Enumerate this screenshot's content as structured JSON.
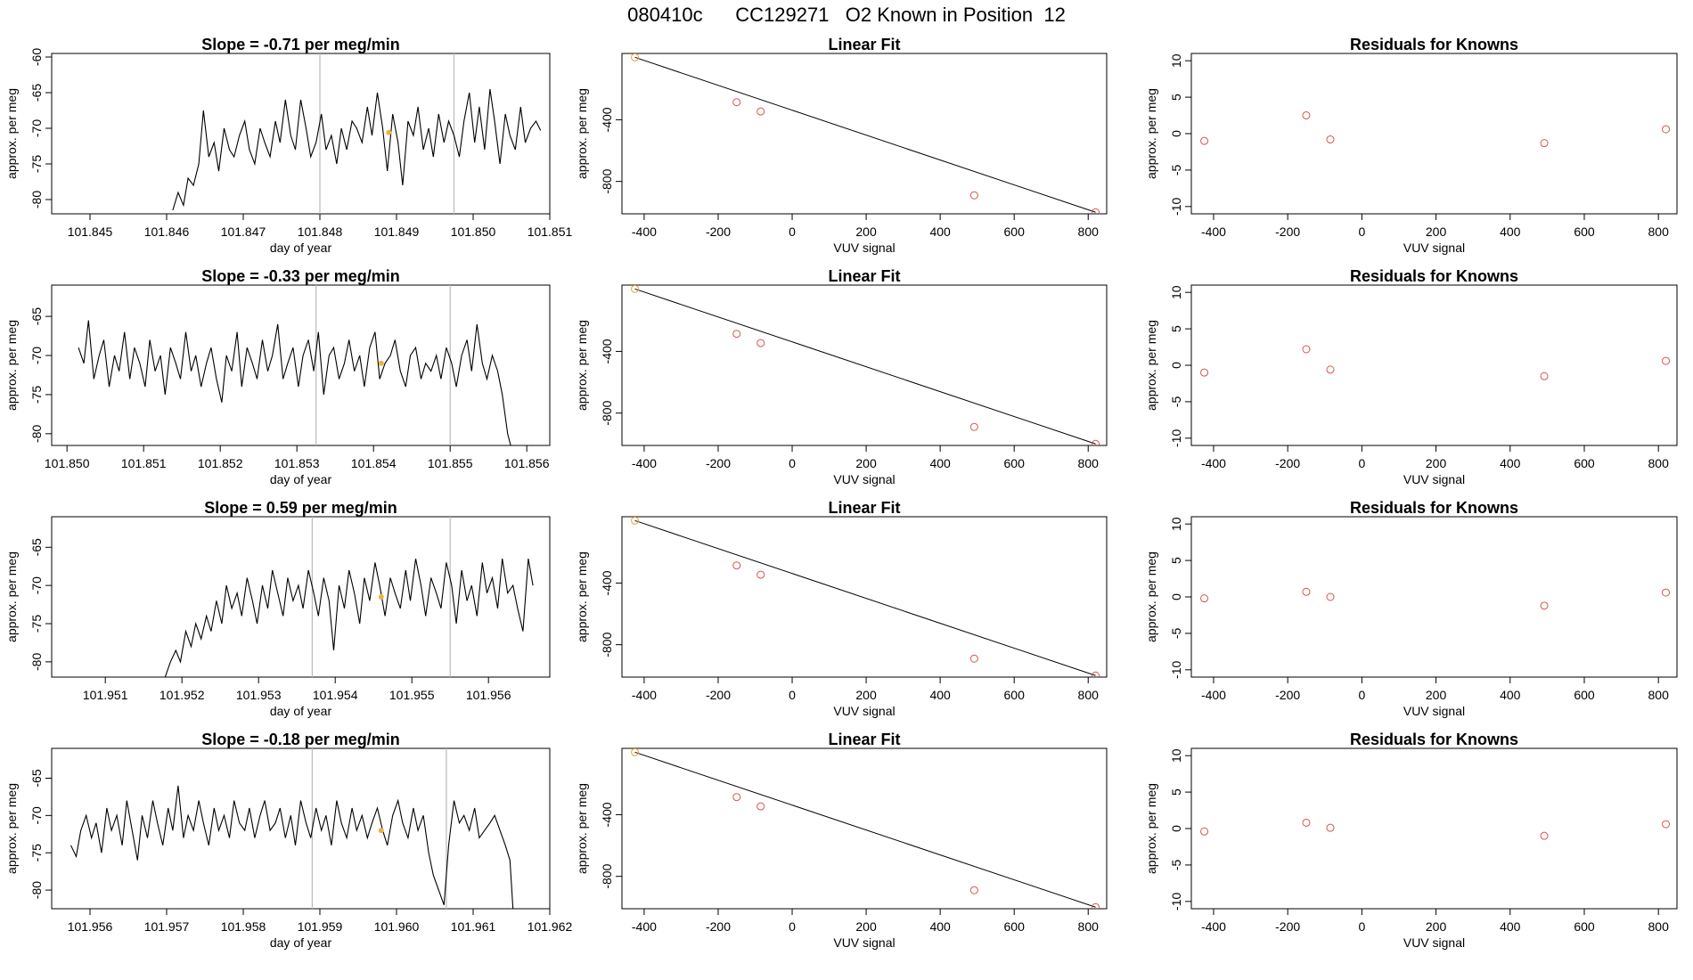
{
  "header": {
    "title": "080410c      CC129271   O2 Known in Position  12"
  },
  "chart_data": [
    {
      "panel": "time-series",
      "row": 1,
      "type": "line",
      "title": "Slope =  -0.71  per meg/min",
      "xlabel": "day of year",
      "ylabel": "approx. per meg",
      "xlim": [
        101.8445,
        101.851
      ],
      "ylim": [
        -82,
        -59.5
      ],
      "grid": false,
      "xticks": [
        "101.845",
        "101.846",
        "101.847",
        "101.848",
        "101.849",
        "101.850",
        "101.851"
      ],
      "yticks": [
        "-60",
        "-65",
        "-70",
        "-75",
        "-80"
      ],
      "vlines": [
        101.848,
        101.84975
      ],
      "marker": {
        "x": 101.8489,
        "y": -70.6
      },
      "x": [
        101.84608,
        101.84615,
        101.84622,
        101.84628,
        101.84635,
        101.84642,
        101.84648,
        101.84655,
        101.84662,
        101.84668,
        101.84675,
        101.84682,
        101.84688,
        101.84695,
        101.84702,
        101.84708,
        101.84715,
        101.84722,
        101.84728,
        101.84735,
        101.84742,
        101.84748,
        101.84755,
        101.84762,
        101.84768,
        101.84775,
        101.84782,
        101.84788,
        101.84795,
        101.84802,
        101.84808,
        101.84815,
        101.84822,
        101.84828,
        101.84835,
        101.84842,
        101.84848,
        101.84855,
        101.84862,
        101.84868,
        101.84875,
        101.84882,
        101.84888,
        101.84895,
        101.84902,
        101.84908,
        101.84915,
        101.84922,
        101.84928,
        101.84935,
        101.84942,
        101.84948,
        101.84955,
        101.84962,
        101.84968,
        101.84975,
        101.84982,
        101.84988,
        101.84995,
        101.85002,
        101.85008,
        101.85015,
        101.85022,
        101.85028,
        101.85035,
        101.85042,
        101.85048,
        101.85055,
        101.85062,
        101.85068,
        101.85075,
        101.85082,
        101.85088
      ],
      "y": [
        -81.5,
        -79,
        -80.8,
        -77,
        -78,
        -75,
        -67.5,
        -74,
        -72,
        -76,
        -70,
        -73,
        -74,
        -71,
        -69,
        -73,
        -75,
        -70,
        -72,
        -74,
        -69,
        -72,
        -66,
        -71,
        -73,
        -66,
        -70,
        -74,
        -72,
        -68,
        -73,
        -71,
        -75,
        -70,
        -73,
        -69,
        -70,
        -72,
        -67,
        -71,
        -65,
        -70,
        -76,
        -68,
        -72,
        -78,
        -69,
        -71,
        -67,
        -73,
        -70,
        -74,
        -68,
        -72,
        -69,
        -71,
        -74,
        -69,
        -65,
        -72,
        -67,
        -73,
        -64.5,
        -69,
        -75,
        -68,
        -71,
        -73,
        -67,
        -72,
        -70,
        -69,
        -70.3
      ]
    },
    {
      "panel": "linear-fit",
      "row": 1,
      "type": "scatter",
      "title": "Linear Fit",
      "xlabel": "VUV signal",
      "ylabel": "approx. per meg",
      "xlim": [
        -460,
        850
      ],
      "ylim": [
        -1010,
        30
      ],
      "xticks": [
        "-400",
        "-200",
        "0",
        "200",
        "400",
        "600",
        "800"
      ],
      "yticks": [
        "-400",
        "-800"
      ],
      "x": [
        -425,
        -150,
        -85,
        492,
        820
      ],
      "y": [
        5,
        -286,
        -346,
        -890,
        -1000
      ],
      "fit_line": {
        "x": [
          -425,
          820
        ],
        "y": [
          5,
          -1000
        ]
      }
    },
    {
      "panel": "residuals",
      "row": 1,
      "type": "scatter",
      "title": "Residuals for Knowns",
      "xlabel": "VUV signal",
      "ylabel": "approx. per meg",
      "xlim": [
        -460,
        850
      ],
      "ylim": [
        -11,
        11
      ],
      "xticks": [
        "-400",
        "-200",
        "0",
        "200",
        "400",
        "600",
        "800"
      ],
      "yticks": [
        "10",
        "5",
        "0",
        "-5",
        "-10"
      ],
      "x": [
        -425,
        -150,
        -85,
        492,
        820
      ],
      "y": [
        -1.0,
        2.5,
        -0.8,
        -1.3,
        0.6
      ]
    },
    {
      "panel": "time-series",
      "row": 2,
      "type": "line",
      "title": "Slope =  -0.33  per meg/min",
      "xlabel": "day of year",
      "ylabel": "approx. per meg",
      "xlim": [
        101.8498,
        101.8563
      ],
      "ylim": [
        -81.5,
        -61
      ],
      "grid": false,
      "xticks": [
        "101.850",
        "101.851",
        "101.852",
        "101.853",
        "101.854",
        "101.855",
        "101.856"
      ],
      "yticks": [
        "-65",
        "-70",
        "-75",
        "-80"
      ],
      "vlines": [
        101.85325,
        101.855
      ],
      "marker": {
        "x": 101.8541,
        "y": -71
      },
      "x": [
        101.85015,
        101.85022,
        101.85028,
        101.85035,
        101.85042,
        101.85048,
        101.85055,
        101.85062,
        101.85068,
        101.85075,
        101.85082,
        101.85088,
        101.85095,
        101.85102,
        101.85108,
        101.85115,
        101.85122,
        101.85128,
        101.85135,
        101.85142,
        101.85148,
        101.85155,
        101.85162,
        101.85168,
        101.85175,
        101.85182,
        101.85188,
        101.85195,
        101.85202,
        101.85208,
        101.85215,
        101.85222,
        101.85228,
        101.85235,
        101.85242,
        101.85248,
        101.85255,
        101.85262,
        101.85268,
        101.85275,
        101.85282,
        101.85288,
        101.85295,
        101.85302,
        101.85308,
        101.85315,
        101.85322,
        101.85328,
        101.85335,
        101.85342,
        101.85348,
        101.85355,
        101.85362,
        101.85368,
        101.85375,
        101.85382,
        101.85388,
        101.85395,
        101.85402,
        101.85408,
        101.85415,
        101.85422,
        101.85428,
        101.85435,
        101.85442,
        101.85448,
        101.85455,
        101.85462,
        101.85468,
        101.85475,
        101.85482,
        101.85488,
        101.85495,
        101.85502,
        101.85508,
        101.85515,
        101.85522,
        101.85528,
        101.85535,
        101.85542,
        101.85548,
        101.85555,
        101.85562,
        101.85568,
        101.85575,
        101.85579
      ],
      "y": [
        -69,
        -71,
        -65.5,
        -73,
        -70,
        -68,
        -74,
        -70,
        -72,
        -67,
        -73,
        -69,
        -71,
        -74,
        -68,
        -72,
        -70,
        -75,
        -69,
        -71,
        -73,
        -67,
        -72,
        -70,
        -74,
        -71,
        -69,
        -73,
        -76,
        -70,
        -72,
        -67,
        -74,
        -69,
        -71,
        -73,
        -68,
        -72,
        -70,
        -66,
        -73,
        -71,
        -69,
        -74,
        -70,
        -68,
        -72,
        -67,
        -75,
        -70,
        -69,
        -73,
        -71,
        -68,
        -72,
        -70,
        -74,
        -69,
        -67,
        -73,
        -71,
        -70,
        -68,
        -72,
        -74,
        -70,
        -69,
        -73,
        -71,
        -72,
        -70,
        -73,
        -69,
        -71,
        -74,
        -70,
        -68,
        -72,
        -66,
        -71,
        -73,
        -70,
        -72,
        -75,
        -80,
        -81.5
      ]
    },
    {
      "panel": "linear-fit",
      "row": 2,
      "type": "scatter",
      "title": "Linear Fit",
      "xlabel": "VUV signal",
      "ylabel": "approx. per meg",
      "xlim": [
        -460,
        850
      ],
      "ylim": [
        -1010,
        30
      ],
      "xticks": [
        "-400",
        "-200",
        "0",
        "200",
        "400",
        "600",
        "800"
      ],
      "yticks": [
        "-400",
        "-800"
      ],
      "x": [
        -425,
        -150,
        -85,
        492,
        820
      ],
      "y": [
        5,
        -286,
        -346,
        -890,
        -1000
      ],
      "fit_line": {
        "x": [
          -425,
          820
        ],
        "y": [
          5,
          -1000
        ]
      }
    },
    {
      "panel": "residuals",
      "row": 2,
      "type": "scatter",
      "title": "Residuals for Knowns",
      "xlabel": "VUV signal",
      "ylabel": "approx. per meg",
      "xlim": [
        -460,
        850
      ],
      "ylim": [
        -11,
        11
      ],
      "xticks": [
        "-400",
        "-200",
        "0",
        "200",
        "400",
        "600",
        "800"
      ],
      "yticks": [
        "10",
        "5",
        "0",
        "-5",
        "-10"
      ],
      "x": [
        -425,
        -150,
        -85,
        492,
        820
      ],
      "y": [
        -1.0,
        2.2,
        -0.6,
        -1.5,
        0.6
      ]
    },
    {
      "panel": "time-series",
      "row": 3,
      "type": "line",
      "title": "Slope =  0.59  per meg/min",
      "xlabel": "day of year",
      "ylabel": "approx. per meg",
      "xlim": [
        101.9503,
        101.9568
      ],
      "ylim": [
        -82,
        -61
      ],
      "grid": false,
      "xticks": [
        "101.951",
        "101.952",
        "101.953",
        "101.954",
        "101.955",
        "101.956"
      ],
      "yticks": [
        "-65",
        "-70",
        "-75",
        "-80"
      ],
      "vlines": [
        101.9537,
        101.9555
      ],
      "marker": {
        "x": 101.9546,
        "y": -71.5
      },
      "x": [
        101.95178,
        101.95185,
        101.95192,
        101.95198,
        101.95205,
        101.95212,
        101.95218,
        101.95225,
        101.95232,
        101.95238,
        101.95245,
        101.95252,
        101.95258,
        101.95265,
        101.95272,
        101.95278,
        101.95285,
        101.95292,
        101.95298,
        101.95305,
        101.95312,
        101.95318,
        101.95325,
        101.95332,
        101.95338,
        101.95345,
        101.95352,
        101.95358,
        101.95365,
        101.95372,
        101.95378,
        101.95385,
        101.95392,
        101.95398,
        101.95405,
        101.95412,
        101.95418,
        101.95425,
        101.95432,
        101.95438,
        101.95445,
        101.95452,
        101.95458,
        101.95465,
        101.95472,
        101.95478,
        101.95485,
        101.95492,
        101.95498,
        101.95505,
        101.95512,
        101.95518,
        101.95525,
        101.95532,
        101.95538,
        101.95545,
        101.95552,
        101.95558,
        101.95565,
        101.95572,
        101.95578,
        101.95585,
        101.95592,
        101.95598,
        101.95605,
        101.95612,
        101.95618,
        101.95625,
        101.95632,
        101.95638,
        101.95645,
        101.95652,
        101.95658
      ],
      "y": [
        -82,
        -80,
        -78.5,
        -80,
        -76,
        -78,
        -75,
        -77,
        -74,
        -76,
        -72,
        -75,
        -70,
        -73,
        -71,
        -74,
        -69,
        -72,
        -75,
        -70,
        -73,
        -68,
        -71,
        -74,
        -69,
        -72,
        -70,
        -73,
        -68,
        -71,
        -74,
        -69,
        -72,
        -78.5,
        -70,
        -73,
        -68,
        -71,
        -75,
        -69,
        -72,
        -67,
        -70,
        -74,
        -69,
        -71,
        -73,
        -68,
        -72,
        -66.5,
        -70,
        -74,
        -69,
        -71,
        -73,
        -67,
        -70,
        -75,
        -68,
        -72,
        -70,
        -74,
        -67,
        -71,
        -69,
        -73,
        -66.5,
        -71,
        -70,
        -73,
        -76,
        -66.5,
        -70
      ]
    },
    {
      "panel": "linear-fit",
      "row": 3,
      "type": "scatter",
      "title": "Linear Fit",
      "xlabel": "VUV signal",
      "ylabel": "approx. per meg",
      "xlim": [
        -460,
        850
      ],
      "ylim": [
        -1010,
        30
      ],
      "xticks": [
        "-400",
        "-200",
        "0",
        "200",
        "400",
        "600",
        "800"
      ],
      "yticks": [
        "-400",
        "-800"
      ],
      "x": [
        -425,
        -150,
        -85,
        492,
        820
      ],
      "y": [
        5,
        -286,
        -346,
        -890,
        -1000
      ],
      "fit_line": {
        "x": [
          -425,
          820
        ],
        "y": [
          5,
          -1000
        ]
      }
    },
    {
      "panel": "residuals",
      "row": 3,
      "type": "scatter",
      "title": "Residuals for Knowns",
      "xlabel": "VUV signal",
      "ylabel": "approx. per meg",
      "xlim": [
        -460,
        850
      ],
      "ylim": [
        -11,
        11
      ],
      "xticks": [
        "-400",
        "-200",
        "0",
        "200",
        "400",
        "600",
        "800"
      ],
      "yticks": [
        "10",
        "5",
        "0",
        "-5",
        "-10"
      ],
      "x": [
        -425,
        -150,
        -85,
        492,
        820
      ],
      "y": [
        -0.2,
        0.7,
        0.0,
        -1.2,
        0.6
      ]
    },
    {
      "panel": "time-series",
      "row": 4,
      "type": "line",
      "title": "Slope =  -0.18  per meg/min",
      "xlabel": "day of year",
      "ylabel": "approx. per meg",
      "xlim": [
        101.9555,
        101.962
      ],
      "ylim": [
        -82.5,
        -61
      ],
      "grid": false,
      "xticks": [
        "101.956",
        "101.957",
        "101.958",
        "101.959",
        "101.960",
        "101.961",
        "101.962"
      ],
      "yticks": [
        "-65",
        "-70",
        "-75",
        "-80"
      ],
      "vlines": [
        101.9589,
        101.96065
      ],
      "marker": {
        "x": 101.9598,
        "y": -72
      },
      "x": [
        101.95575,
        101.95582,
        101.95588,
        101.95595,
        101.95602,
        101.95608,
        101.95615,
        101.95622,
        101.95628,
        101.95635,
        101.95642,
        101.95648,
        101.95655,
        101.95662,
        101.95668,
        101.95675,
        101.95682,
        101.95688,
        101.95695,
        101.95702,
        101.95708,
        101.95715,
        101.95722,
        101.95728,
        101.95735,
        101.95742,
        101.95748,
        101.95755,
        101.95762,
        101.95768,
        101.95775,
        101.95782,
        101.95788,
        101.95795,
        101.95802,
        101.95808,
        101.95815,
        101.95822,
        101.95828,
        101.95835,
        101.95842,
        101.95848,
        101.95855,
        101.95862,
        101.95868,
        101.95875,
        101.95882,
        101.95888,
        101.95895,
        101.95902,
        101.95908,
        101.95915,
        101.95922,
        101.95928,
        101.95935,
        101.95942,
        101.95948,
        101.95955,
        101.95962,
        101.95968,
        101.95975,
        101.95982,
        101.95988,
        101.95995,
        101.96002,
        101.96008,
        101.96015,
        101.96022,
        101.96028,
        101.96035,
        101.96042,
        101.96048,
        101.96055,
        101.96062,
        101.96068,
        101.96075,
        101.96082,
        101.96088,
        101.96095,
        101.96102,
        101.96108,
        101.96115,
        101.96122,
        101.96128,
        101.96135,
        101.96142,
        101.96148,
        101.96152
      ],
      "y": [
        -74,
        -75.5,
        -72,
        -70,
        -73,
        -71,
        -75,
        -69,
        -72,
        -70,
        -74,
        -68,
        -72,
        -76,
        -70,
        -73,
        -68,
        -71,
        -74,
        -69,
        -72,
        -66,
        -73,
        -70,
        -72,
        -68,
        -71,
        -74,
        -69,
        -72,
        -70,
        -73,
        -68,
        -71,
        -72,
        -69,
        -73,
        -70,
        -68,
        -72,
        -71,
        -69,
        -73,
        -70,
        -74,
        -68,
        -71,
        -73,
        -69,
        -72,
        -70,
        -74,
        -68,
        -71,
        -73,
        -69,
        -72,
        -70,
        -73,
        -71,
        -69,
        -72,
        -74,
        -70,
        -68,
        -71,
        -73,
        -69,
        -72,
        -70,
        -75,
        -78,
        -80,
        -82,
        -74,
        -68,
        -71,
        -70,
        -72,
        -69,
        -73,
        -72,
        -71,
        -70,
        -72,
        -74,
        -76,
        -82.5
      ]
    },
    {
      "panel": "linear-fit",
      "row": 4,
      "type": "scatter",
      "title": "Linear Fit",
      "xlabel": "VUV signal",
      "ylabel": "approx. per meg",
      "xlim": [
        -460,
        850
      ],
      "ylim": [
        -1010,
        30
      ],
      "xticks": [
        "-400",
        "-200",
        "0",
        "200",
        "400",
        "600",
        "800"
      ],
      "yticks": [
        "-400",
        "-800"
      ],
      "x": [
        -425,
        -150,
        -85,
        492,
        820
      ],
      "y": [
        5,
        -286,
        -346,
        -890,
        -1000
      ],
      "fit_line": {
        "x": [
          -425,
          820
        ],
        "y": [
          5,
          -1000
        ]
      }
    },
    {
      "panel": "residuals",
      "row": 4,
      "type": "scatter",
      "title": "Residuals for Knowns",
      "xlabel": "VUV signal",
      "ylabel": "approx. per meg",
      "xlim": [
        -460,
        850
      ],
      "ylim": [
        -11,
        11
      ],
      "xticks": [
        "-400",
        "-200",
        "0",
        "200",
        "400",
        "600",
        "800"
      ],
      "yticks": [
        "10",
        "5",
        "0",
        "-5",
        "-10"
      ],
      "x": [
        -425,
        -150,
        -85,
        492,
        820
      ],
      "y": [
        -0.4,
        0.8,
        0.1,
        -1.0,
        0.6
      ]
    }
  ],
  "colors": {
    "line": "#000000",
    "point": "#d9534f",
    "first_point": "#e8a33d",
    "marker": "#f0b040",
    "vline": "#bbbbbb"
  }
}
